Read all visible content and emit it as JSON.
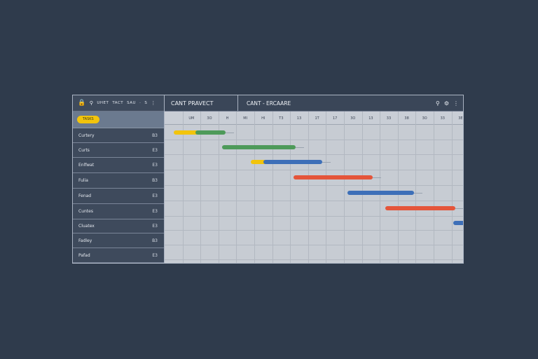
{
  "toolbar": {
    "menu_items": [
      "UHET",
      "TACT",
      "SAU",
      "·",
      "S"
    ],
    "pill": "TASKS"
  },
  "header": {
    "project_title": "CANT PRAVECT",
    "sub_title": "CANT - ERCAARE"
  },
  "tasks": [
    {
      "name": "Curtery",
      "code": "B3"
    },
    {
      "name": "Curts",
      "code": "E3"
    },
    {
      "name": "Enlfwat",
      "code": "E3"
    },
    {
      "name": "Fulia",
      "code": "B3"
    },
    {
      "name": "Fenad",
      "code": "E3"
    },
    {
      "name": "Cuntes",
      "code": "E3"
    },
    {
      "name": "Cluatex",
      "code": "E3"
    },
    {
      "name": "Fadley",
      "code": "B3"
    },
    {
      "name": "Pafad",
      "code": "E3"
    }
  ],
  "dates": [
    "",
    "UM",
    "3O",
    "H",
    "MI",
    "HI",
    "T3",
    "13",
    "1T",
    "17",
    "3O",
    "13",
    "33",
    "38",
    "3O",
    "33",
    "3E"
  ],
  "bars": [
    {
      "row": 0,
      "start": 0.5,
      "end": 1.9,
      "color": "#f2c40c"
    },
    {
      "row": 0,
      "start": 1.7,
      "end": 3.4,
      "color": "#4e9a5a"
    },
    {
      "row": 1,
      "start": 3.2,
      "end": 7.3,
      "color": "#4e9a5a"
    },
    {
      "row": 2,
      "start": 4.8,
      "end": 5.9,
      "color": "#f2c40c"
    },
    {
      "row": 2,
      "start": 5.5,
      "end": 8.8,
      "color": "#3d6fb8"
    },
    {
      "row": 3,
      "start": 7.2,
      "end": 11.6,
      "color": "#e4553a"
    },
    {
      "row": 4,
      "start": 10.2,
      "end": 13.9,
      "color": "#3d6fb8"
    },
    {
      "row": 5,
      "start": 12.3,
      "end": 16.2,
      "color": "#e4553a"
    },
    {
      "row": 6,
      "start": 16.1,
      "end": 17.2,
      "color": "#3d6fb8"
    }
  ]
}
